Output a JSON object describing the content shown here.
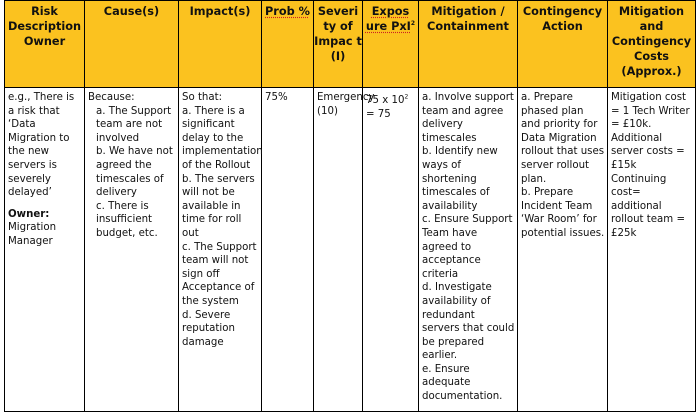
{
  "headers": {
    "risk": "Risk Description Owner",
    "cause": "Cause(s)",
    "impact": "Impact(s)",
    "prob": "Prob %",
    "severity": "Severi ty of Impac t (I)",
    "exposure_main": "Expos ure PxI",
    "exposure_sup": "2",
    "mitigation": "Mitigation / Containment",
    "contingency": "Contingency Action",
    "costs": "Mitigation and Contingency Costs (Approx.)"
  },
  "row": {
    "risk": {
      "lines": [
        "e.g., There is a risk that ‘Data Migration to the new servers is severely delayed’"
      ],
      "owner_label": "Owner:",
      "owner_value": "Migration Manager"
    },
    "cause": {
      "intro": "Because:",
      "items": [
        "a. The Support team are not involved",
        "b. We have not agreed the timescales of delivery",
        "c. There is insufficient budget, etc."
      ]
    },
    "impact": {
      "intro": "So that:",
      "items": [
        "a. There is a significant delay to the implementation of the Rollout",
        "b. The servers will not be available in time for roll out",
        "c. The Support team will not sign off Acceptance of the system",
        "d. Severe reputation damage"
      ]
    },
    "prob": "75%",
    "severity": "Emergency (10)",
    "exposure_main": "75 x 10",
    "exposure_sup": "2",
    "exposure_result": "= 75",
    "mitigation": {
      "items": [
        "a. Involve support team and agree delivery timescales",
        "b. Identify new ways of shortening timescales of availability",
        "c. Ensure Support Team have agreed to acceptance criteria",
        "d. Investigate availability of redundant servers that could be prepared earlier.",
        "e. Ensure adequate documentation."
      ]
    },
    "contingency": {
      "items": [
        "a. Prepare phased plan and priority for Data Migration rollout that uses server rollout plan.",
        "b. Prepare Incident Team ‘War Room’ for potential issues."
      ]
    },
    "costs": {
      "items": [
        "Mitigation cost = 1 Tech Writer = £10k. Additional server costs = £15k",
        "Continuing cost= additional rollout team = £25k"
      ]
    }
  }
}
